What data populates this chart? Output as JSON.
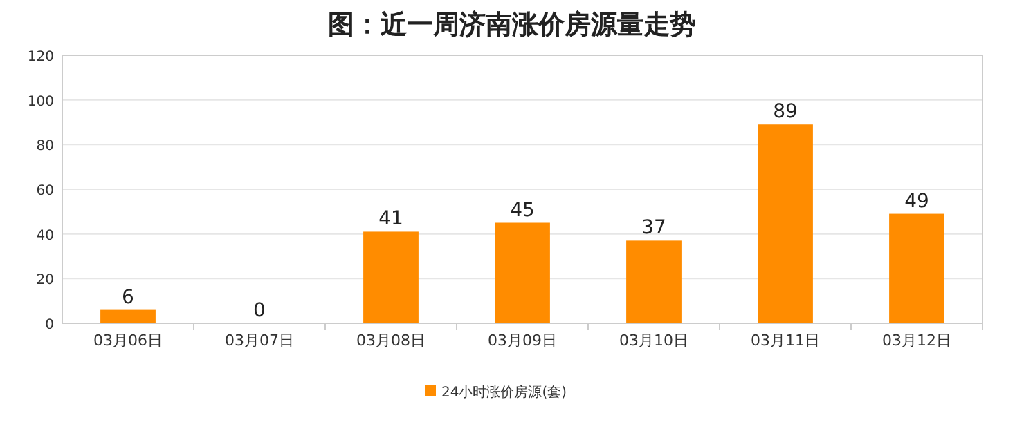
{
  "chart_data": {
    "type": "bar",
    "title": "图：近一周济南涨价房源量走势",
    "categories": [
      "03月06日",
      "03月07日",
      "03月08日",
      "03月09日",
      "03月10日",
      "03月11日",
      "03月12日"
    ],
    "series": [
      {
        "name": "24小时涨价房源(套)",
        "color": "#ff8c00",
        "values": [
          6,
          0,
          41,
          45,
          37,
          89,
          49
        ]
      }
    ],
    "ylim": [
      0,
      120
    ],
    "yticks": [
      0,
      20,
      40,
      60,
      80,
      100,
      120
    ],
    "grid": "y",
    "legend": "bottom",
    "data_labels": true
  }
}
